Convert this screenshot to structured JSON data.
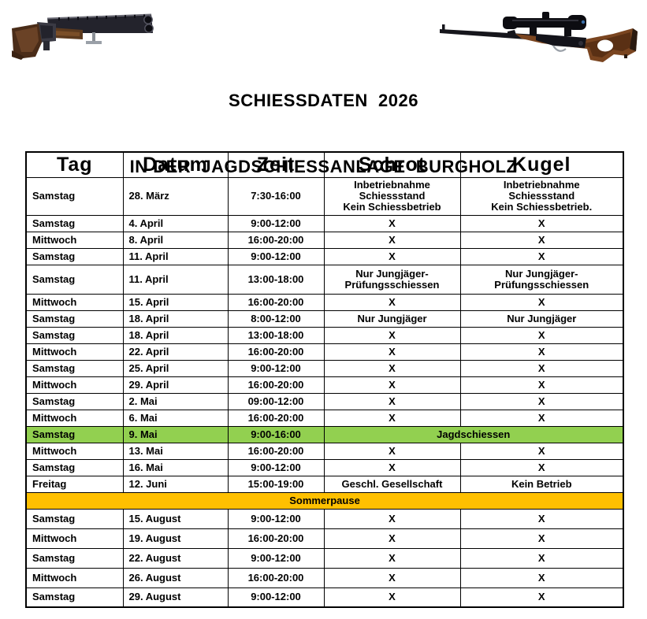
{
  "title": {
    "line1": "SCHIESSDATEN  2026",
    "line2": "IN DER  JAGDSCHIESSANLAGE  BURGHOLZ"
  },
  "images": {
    "left": "over-under-shotgun",
    "right": "scoped-bolt-action-rifle"
  },
  "colors": {
    "highlight_green": "#92D050",
    "highlight_orange": "#FFC000",
    "border": "#000000",
    "text": "#000000"
  },
  "table": {
    "headers": [
      "Tag",
      "Datum",
      "Zeit",
      "Schrot",
      "Kugel"
    ],
    "rows": [
      {
        "style": "tall3",
        "cells": [
          "Samstag",
          "28. März",
          "7:30-16:00",
          "Inbetriebnahme\nSchiessstand\nKein Schiessbetrieb",
          "Inbetriebnahme\nSchiessstand\nKein Schiessbetrieb."
        ]
      },
      {
        "style": "normal",
        "cells": [
          "Samstag",
          "4. April",
          "9:00-12:00",
          "X",
          "X"
        ]
      },
      {
        "style": "normal",
        "cells": [
          "Mittwoch",
          "8. April",
          "16:00-20:00",
          "X",
          "X"
        ]
      },
      {
        "style": "normal",
        "cells": [
          "Samstag",
          "11. April",
          "9:00-12:00",
          "X",
          "X"
        ]
      },
      {
        "style": "tall2",
        "cells": [
          "Samstag",
          "11. April",
          "13:00-18:00",
          "Nur Jungjäger-\nPrüfungsschiessen",
          "Nur Jungjäger-\nPrüfungsschiessen"
        ]
      },
      {
        "style": "normal",
        "cells": [
          "Mittwoch",
          "15. April",
          "16:00-20:00",
          "X",
          "X"
        ]
      },
      {
        "style": "normal",
        "cells": [
          "Samstag",
          "18. April",
          "8:00-12:00",
          "Nur Jungjäger",
          "Nur Jungjäger"
        ]
      },
      {
        "style": "normal",
        "cells": [
          "Samstag",
          "18. April",
          "13:00-18:00",
          "X",
          "X"
        ]
      },
      {
        "style": "normal",
        "cells": [
          "Mittwoch",
          "22. April",
          "16:00-20:00",
          "X",
          "X"
        ]
      },
      {
        "style": "normal",
        "cells": [
          "Samstag",
          "25. April",
          "9:00-12:00",
          "X",
          "X"
        ]
      },
      {
        "style": "normal",
        "cells": [
          "Mittwoch",
          "29. April",
          "16:00-20:00",
          "X",
          "X"
        ]
      },
      {
        "style": "normal",
        "cells": [
          "Samstag",
          "2. Mai",
          "09:00-12:00",
          "X",
          "X"
        ]
      },
      {
        "style": "normal",
        "cells": [
          "Mittwoch",
          "6. Mai",
          "16:00-20:00",
          "X",
          "X"
        ]
      },
      {
        "style": "normal",
        "highlight": "green",
        "merge_last": 2,
        "cells": [
          "Samstag",
          "9. Mai",
          "9:00-16:00",
          "Jagdschiessen"
        ]
      },
      {
        "style": "normal",
        "cells": [
          "Mittwoch",
          "13. Mai",
          "16:00-20:00",
          "X",
          "X"
        ]
      },
      {
        "style": "normal",
        "cells": [
          "Samstag",
          "16. Mai",
          "9:00-12:00",
          "X",
          "X"
        ]
      },
      {
        "style": "normal",
        "cells": [
          "Freitag",
          "12. Juni",
          "15:00-19:00",
          "Geschl. Gesellschaft",
          "Kein Betrieb"
        ]
      },
      {
        "style": "normal",
        "highlight": "orange",
        "merge_all": true,
        "cells": [
          "Sommerpause"
        ]
      },
      {
        "style": "august",
        "cells": [
          "Samstag",
          "15. August",
          "9:00-12:00",
          "X",
          "X"
        ]
      },
      {
        "style": "august",
        "cells": [
          "Mittwoch",
          "19. August",
          "16:00-20:00",
          "X",
          "X"
        ]
      },
      {
        "style": "august",
        "cells": [
          "Samstag",
          "22. August",
          "9:00-12:00",
          "X",
          "X"
        ]
      },
      {
        "style": "august",
        "cells": [
          "Mittwoch",
          "26. August",
          "16:00-20:00",
          "X",
          "X"
        ]
      },
      {
        "style": "august",
        "cells": [
          "Samstag",
          "29. August",
          "9:00-12:00",
          "X",
          "X"
        ]
      }
    ]
  }
}
